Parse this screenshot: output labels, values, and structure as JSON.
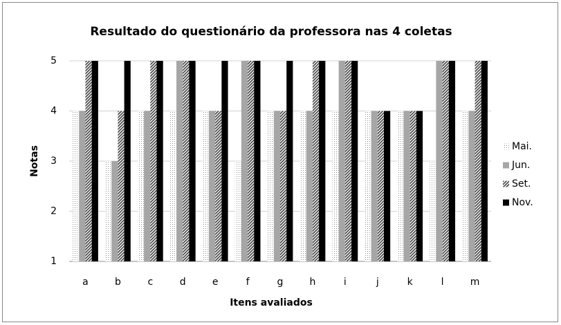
{
  "chart_data": {
    "type": "bar",
    "title": "Resultado do questionário da professora nas 4 coletas",
    "x_label": "Itens avaliados",
    "y_label": "Notas",
    "categories": [
      "a",
      "b",
      "c",
      "d",
      "e",
      "f",
      "g",
      "h",
      "i",
      "j",
      "k",
      "l",
      "m"
    ],
    "series": [
      {
        "name": "Mai.",
        "color": "#8c8c8c",
        "pattern": "dots",
        "values": [
          4,
          3,
          4,
          4,
          4,
          3,
          4,
          4,
          4,
          4,
          4,
          3,
          4
        ]
      },
      {
        "name": "Jun.",
        "color": "#a6a6a6",
        "pattern": "solid",
        "values": [
          4,
          3,
          4,
          5,
          4,
          5,
          4,
          4,
          5,
          4,
          4,
          5,
          4
        ]
      },
      {
        "name": "Set.",
        "color": "#404040",
        "pattern": "hatch",
        "values": [
          5,
          4,
          5,
          5,
          4,
          5,
          4,
          5,
          5,
          4,
          4,
          5,
          5
        ]
      },
      {
        "name": "Nov.",
        "color": "#000000",
        "pattern": "solid",
        "values": [
          5,
          5,
          5,
          5,
          5,
          5,
          5,
          5,
          5,
          4,
          4,
          5,
          5
        ]
      }
    ],
    "ylim": [
      1,
      5
    ],
    "yticks": [
      1,
      2,
      3,
      4,
      5
    ],
    "grid": true,
    "legend": "right"
  }
}
